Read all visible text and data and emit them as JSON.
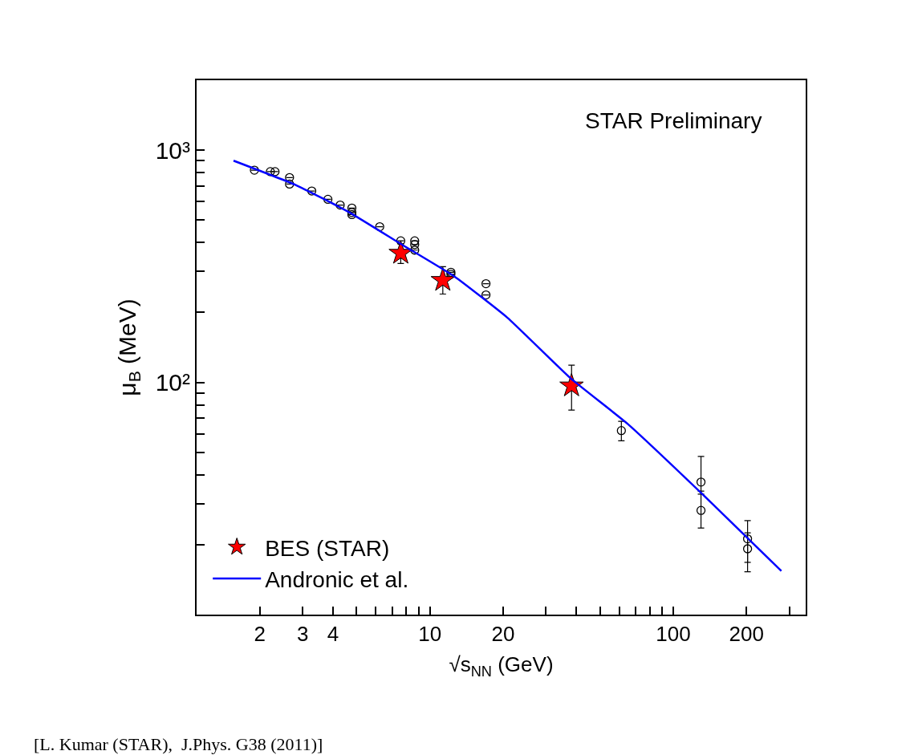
{
  "chart_data": {
    "type": "scatter",
    "xlabel": "√s$_{NN}$ (GeV)",
    "ylabel": "μ$_{B}$ (MeV)",
    "annotations": [
      "STAR Preliminary",
      "[L. Kumar (STAR),  J.Phys. G38 (2011)]"
    ],
    "log": "xy",
    "legend": "bottom left",
    "xlim": [
      1.1,
      350
    ],
    "ylim": [
      10,
      2000
    ],
    "xticks": [
      {
        "value": 2,
        "label": "2"
      },
      {
        "value": 3,
        "label": "3"
      },
      {
        "value": 4,
        "label": "4"
      },
      {
        "value": 5,
        "label": null
      },
      {
        "value": 6,
        "label": null
      },
      {
        "value": 7,
        "label": null
      },
      {
        "value": 8,
        "label": null
      },
      {
        "value": 9,
        "label": null
      },
      {
        "value": 10,
        "label": "10"
      },
      {
        "value": 20,
        "label": "20"
      },
      {
        "value": 30,
        "label": null
      },
      {
        "value": 40,
        "label": null
      },
      {
        "value": 50,
        "label": null
      },
      {
        "value": 60,
        "label": null
      },
      {
        "value": 70,
        "label": null
      },
      {
        "value": 80,
        "label": null
      },
      {
        "value": 90,
        "label": null
      },
      {
        "value": 100,
        "label": "100"
      },
      {
        "value": 200,
        "label": "200"
      },
      {
        "value": 300,
        "label": null
      }
    ],
    "yticks": [
      {
        "value": 20,
        "label": null
      },
      {
        "value": 30,
        "label": null
      },
      {
        "value": 40,
        "label": null
      },
      {
        "value": 50,
        "label": null
      },
      {
        "value": 60,
        "label": null
      },
      {
        "value": 70,
        "label": null
      },
      {
        "value": 80,
        "label": null
      },
      {
        "value": 90,
        "label": null
      },
      {
        "value": 100,
        "label": "10²"
      },
      {
        "value": 200,
        "label": null
      },
      {
        "value": 300,
        "label": null
      },
      {
        "value": 400,
        "label": null
      },
      {
        "value": 500,
        "label": null
      },
      {
        "value": 600,
        "label": null
      },
      {
        "value": 700,
        "label": null
      },
      {
        "value": 800,
        "label": null
      },
      {
        "value": 900,
        "label": null
      },
      {
        "value": 1000,
        "label": "10³"
      }
    ],
    "series": [
      {
        "marker": "circle",
        "color": "#000000",
        "x": [
          1.9,
          2.21,
          2.31,
          2.65,
          2.65,
          3.27,
          3.81,
          4.28,
          4.78,
          4.78,
          4.78,
          6.22,
          7.59,
          8.66,
          8.66,
          8.66,
          12.2,
          12.2,
          17,
          17,
          61.2,
          130,
          130,
          202,
          202
        ],
        "values": [
          820,
          808,
          808,
          762,
          714,
          667,
          614,
          580,
          563,
          539,
          528,
          468,
          407,
          407,
          392,
          371,
          298,
          292,
          266,
          238,
          62,
          37.2,
          28.1,
          21.2,
          19.2
        ],
        "errors": [
          null,
          null,
          null,
          null,
          null,
          null,
          null,
          null,
          null,
          null,
          null,
          null,
          null,
          null,
          null,
          null,
          null,
          null,
          null,
          null,
          [
            56,
            68
          ],
          [
            33,
            48
          ],
          [
            23.6,
            34
          ],
          [
            16.8,
            25.4
          ],
          [
            15.3,
            22.5
          ]
        ]
      },
      {
        "marker": "star",
        "name": "BES (STAR)",
        "color": "#ff0000",
        "x": [
          7.59,
          11.3,
          38.2
        ],
        "values": [
          360,
          275,
          96.6
        ],
        "errors": [
          [
            325,
            395
          ],
          [
            240,
            315
          ],
          [
            76,
            118.6
          ]
        ]
      },
      {
        "type": "line",
        "marker": "none",
        "line_style": "solid",
        "name": "Andronic et al.",
        "color": "#0000ff",
        "x": [
          1.56,
          2.8,
          4.63,
          7.64,
          12.6,
          20.8,
          37.9,
          64.7,
          131,
          278
        ],
        "values": [
          901,
          709,
          542,
          393,
          286,
          190,
          104,
          66.5,
          33.2,
          15.4
        ]
      }
    ]
  }
}
